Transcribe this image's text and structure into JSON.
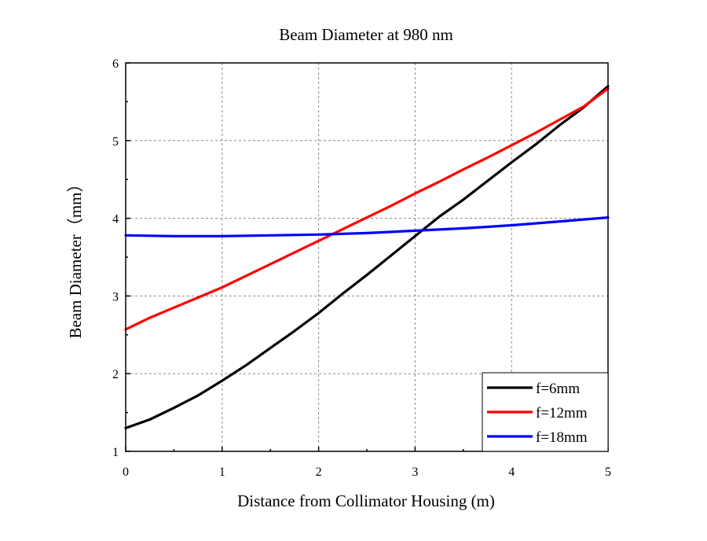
{
  "chart_data": {
    "type": "line",
    "title": "Beam Diameter at 980 nm",
    "xlabel": "Distance from Collimator Housing (m)",
    "ylabel": "Beam Diameter（mm）",
    "xlim": [
      0,
      5
    ],
    "ylim": [
      1,
      6
    ],
    "xticks": [
      0,
      1,
      2,
      3,
      4,
      5
    ],
    "yticks": [
      1,
      2,
      3,
      4,
      5,
      6
    ],
    "xtick_labels": [
      "0",
      "1",
      "2",
      "3",
      "4",
      "5"
    ],
    "ytick_labels": [
      "1",
      "2",
      "3",
      "4",
      "5",
      "6"
    ],
    "grid": true,
    "legend_position": "bottom-right",
    "series": [
      {
        "name": "f=6mm",
        "color": "#000000",
        "x": [
          0,
          0.25,
          0.5,
          0.75,
          1,
          1.25,
          1.5,
          1.75,
          2,
          2.25,
          2.5,
          2.75,
          3,
          3.25,
          3.5,
          3.75,
          4,
          4.25,
          4.5,
          4.75,
          5
        ],
        "y": [
          1.3,
          1.41,
          1.56,
          1.72,
          1.91,
          2.11,
          2.33,
          2.55,
          2.78,
          3.03,
          3.27,
          3.52,
          3.77,
          4.02,
          4.24,
          4.48,
          4.72,
          4.95,
          5.2,
          5.43,
          5.7
        ]
      },
      {
        "name": "f=12mm",
        "color": "#ff0000",
        "x": [
          0,
          0.25,
          0.5,
          0.75,
          1,
          1.25,
          1.5,
          1.75,
          2,
          2.25,
          2.5,
          2.75,
          3,
          3.25,
          3.5,
          3.75,
          4,
          4.25,
          4.5,
          4.75,
          5
        ],
        "y": [
          2.57,
          2.72,
          2.85,
          2.98,
          3.11,
          3.26,
          3.41,
          3.56,
          3.71,
          3.86,
          4.01,
          4.16,
          4.32,
          4.47,
          4.63,
          4.78,
          4.94,
          5.1,
          5.27,
          5.44,
          5.67
        ]
      },
      {
        "name": "f=18mm",
        "color": "#0000ff",
        "x": [
          0,
          0.5,
          1,
          1.5,
          2,
          2.5,
          3,
          3.5,
          4,
          4.5,
          5
        ],
        "y": [
          3.78,
          3.77,
          3.77,
          3.78,
          3.79,
          3.81,
          3.84,
          3.87,
          3.91,
          3.96,
          4.01
        ]
      }
    ]
  }
}
